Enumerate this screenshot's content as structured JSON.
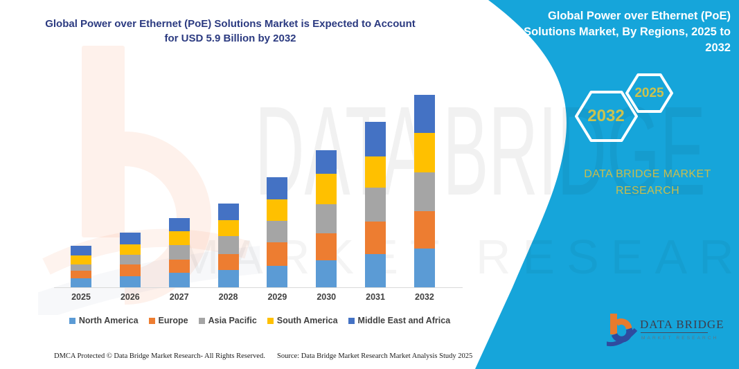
{
  "page_title": {
    "line1": "Global Power over Ethernet (PoE) Solutions Market is Expected to Account",
    "line2": "for USD 5.9 Billion by 2032"
  },
  "banner": {
    "bg_color": "#16a5da",
    "accent_color": "#c9be4d",
    "title_lines": [
      "Global Power over Ethernet (PoE)",
      "Solutions Market, By Regions, 2025 to",
      "2032"
    ],
    "hexagons": [
      {
        "label": "2032"
      },
      {
        "label": "2025"
      }
    ],
    "brand_line1": "DATA BRIDGE MARKET",
    "brand_line2": "RESEARCH"
  },
  "watermark": {
    "line1": "DATA BRIDGE",
    "line2": "MARKET RESEARCH"
  },
  "corner_logo": {
    "wordmark": "DATA BRIDGE",
    "tagline": "MARKET RESEARCH"
  },
  "footer": {
    "dmca": "DMCA Protected © Data Bridge Market Research-  All Rights Reserved.",
    "source": "Source: Data Bridge Market Research  Market Analysis Study 2025"
  },
  "chart_data": {
    "type": "bar",
    "stacked": true,
    "title": "Global Power over Ethernet (PoE) Solutions Market is Expected to Account for USD 5.9 Billion by 2032",
    "value_unit": "USD Billion",
    "categories": [
      "2025",
      "2026",
      "2027",
      "2028",
      "2029",
      "2030",
      "2031",
      "2032"
    ],
    "series": [
      {
        "name": "North America",
        "color": "#5b9bd5",
        "values": [
          0.28,
          0.33,
          0.45,
          0.54,
          0.66,
          0.83,
          1.02,
          1.19
        ]
      },
      {
        "name": "Europe",
        "color": "#ed7d31",
        "values": [
          0.22,
          0.37,
          0.4,
          0.48,
          0.72,
          0.83,
          1.0,
          1.15
        ]
      },
      {
        "name": "Asia Pacific",
        "color": "#a5a5a5",
        "values": [
          0.2,
          0.3,
          0.44,
          0.54,
          0.66,
          0.89,
          1.04,
          1.18
        ]
      },
      {
        "name": "South America",
        "color": "#ffc000",
        "values": [
          0.27,
          0.32,
          0.42,
          0.49,
          0.64,
          0.93,
          0.95,
          1.2
        ]
      },
      {
        "name": "Middle East and Africa",
        "color": "#4472c4",
        "values": [
          0.3,
          0.36,
          0.42,
          0.51,
          0.68,
          0.72,
          1.06,
          1.18
        ]
      }
    ],
    "totals": [
      1.27,
      1.68,
      2.13,
      2.56,
      3.36,
      4.2,
      5.07,
      5.9
    ],
    "ylim": [
      0,
      6
    ],
    "xlabel": "",
    "ylabel": "",
    "grid": false,
    "legend_position": "bottom"
  }
}
